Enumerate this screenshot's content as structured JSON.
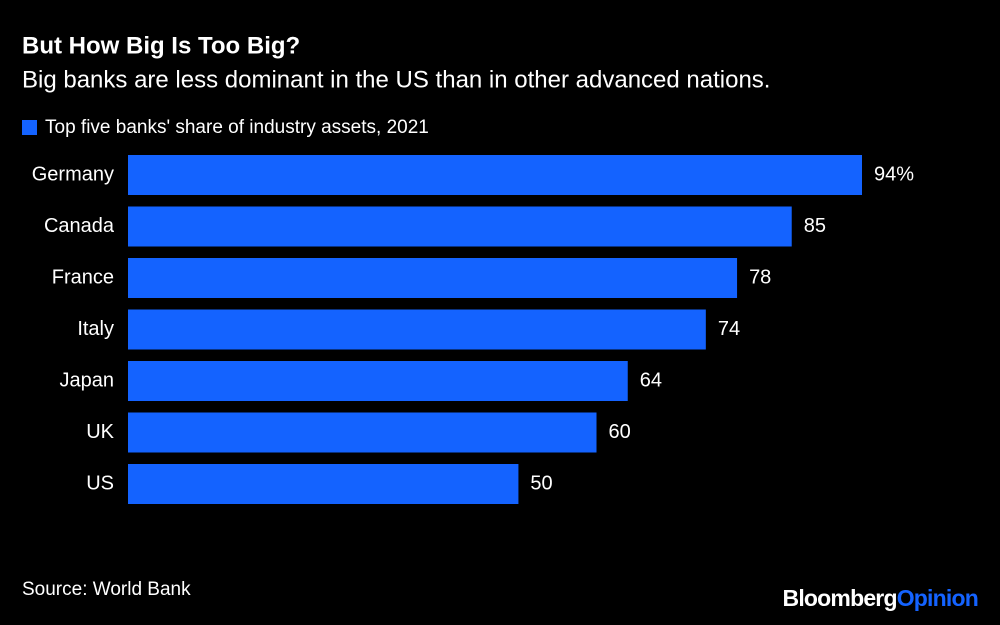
{
  "chart_data": {
    "type": "hbar",
    "title": "But How Big Is Too Big?",
    "subtitle": "Big banks are less dominant in the US than in other advanced nations.",
    "categories": [
      "Germany",
      "Canada",
      "France",
      "Italy",
      "Japan",
      "UK",
      "US"
    ],
    "series": [
      {
        "name": "Top five banks' share of industry assets, 2021",
        "color": "#1463ff",
        "values": [
          94,
          85,
          78,
          74,
          64,
          60,
          50
        ],
        "value_labels": [
          "94%",
          "85",
          "78",
          "74",
          "64",
          "60",
          "50"
        ]
      }
    ],
    "source": "Source: World Bank",
    "brand": {
      "name": "Bloomberg",
      "section": "Opinion"
    }
  }
}
